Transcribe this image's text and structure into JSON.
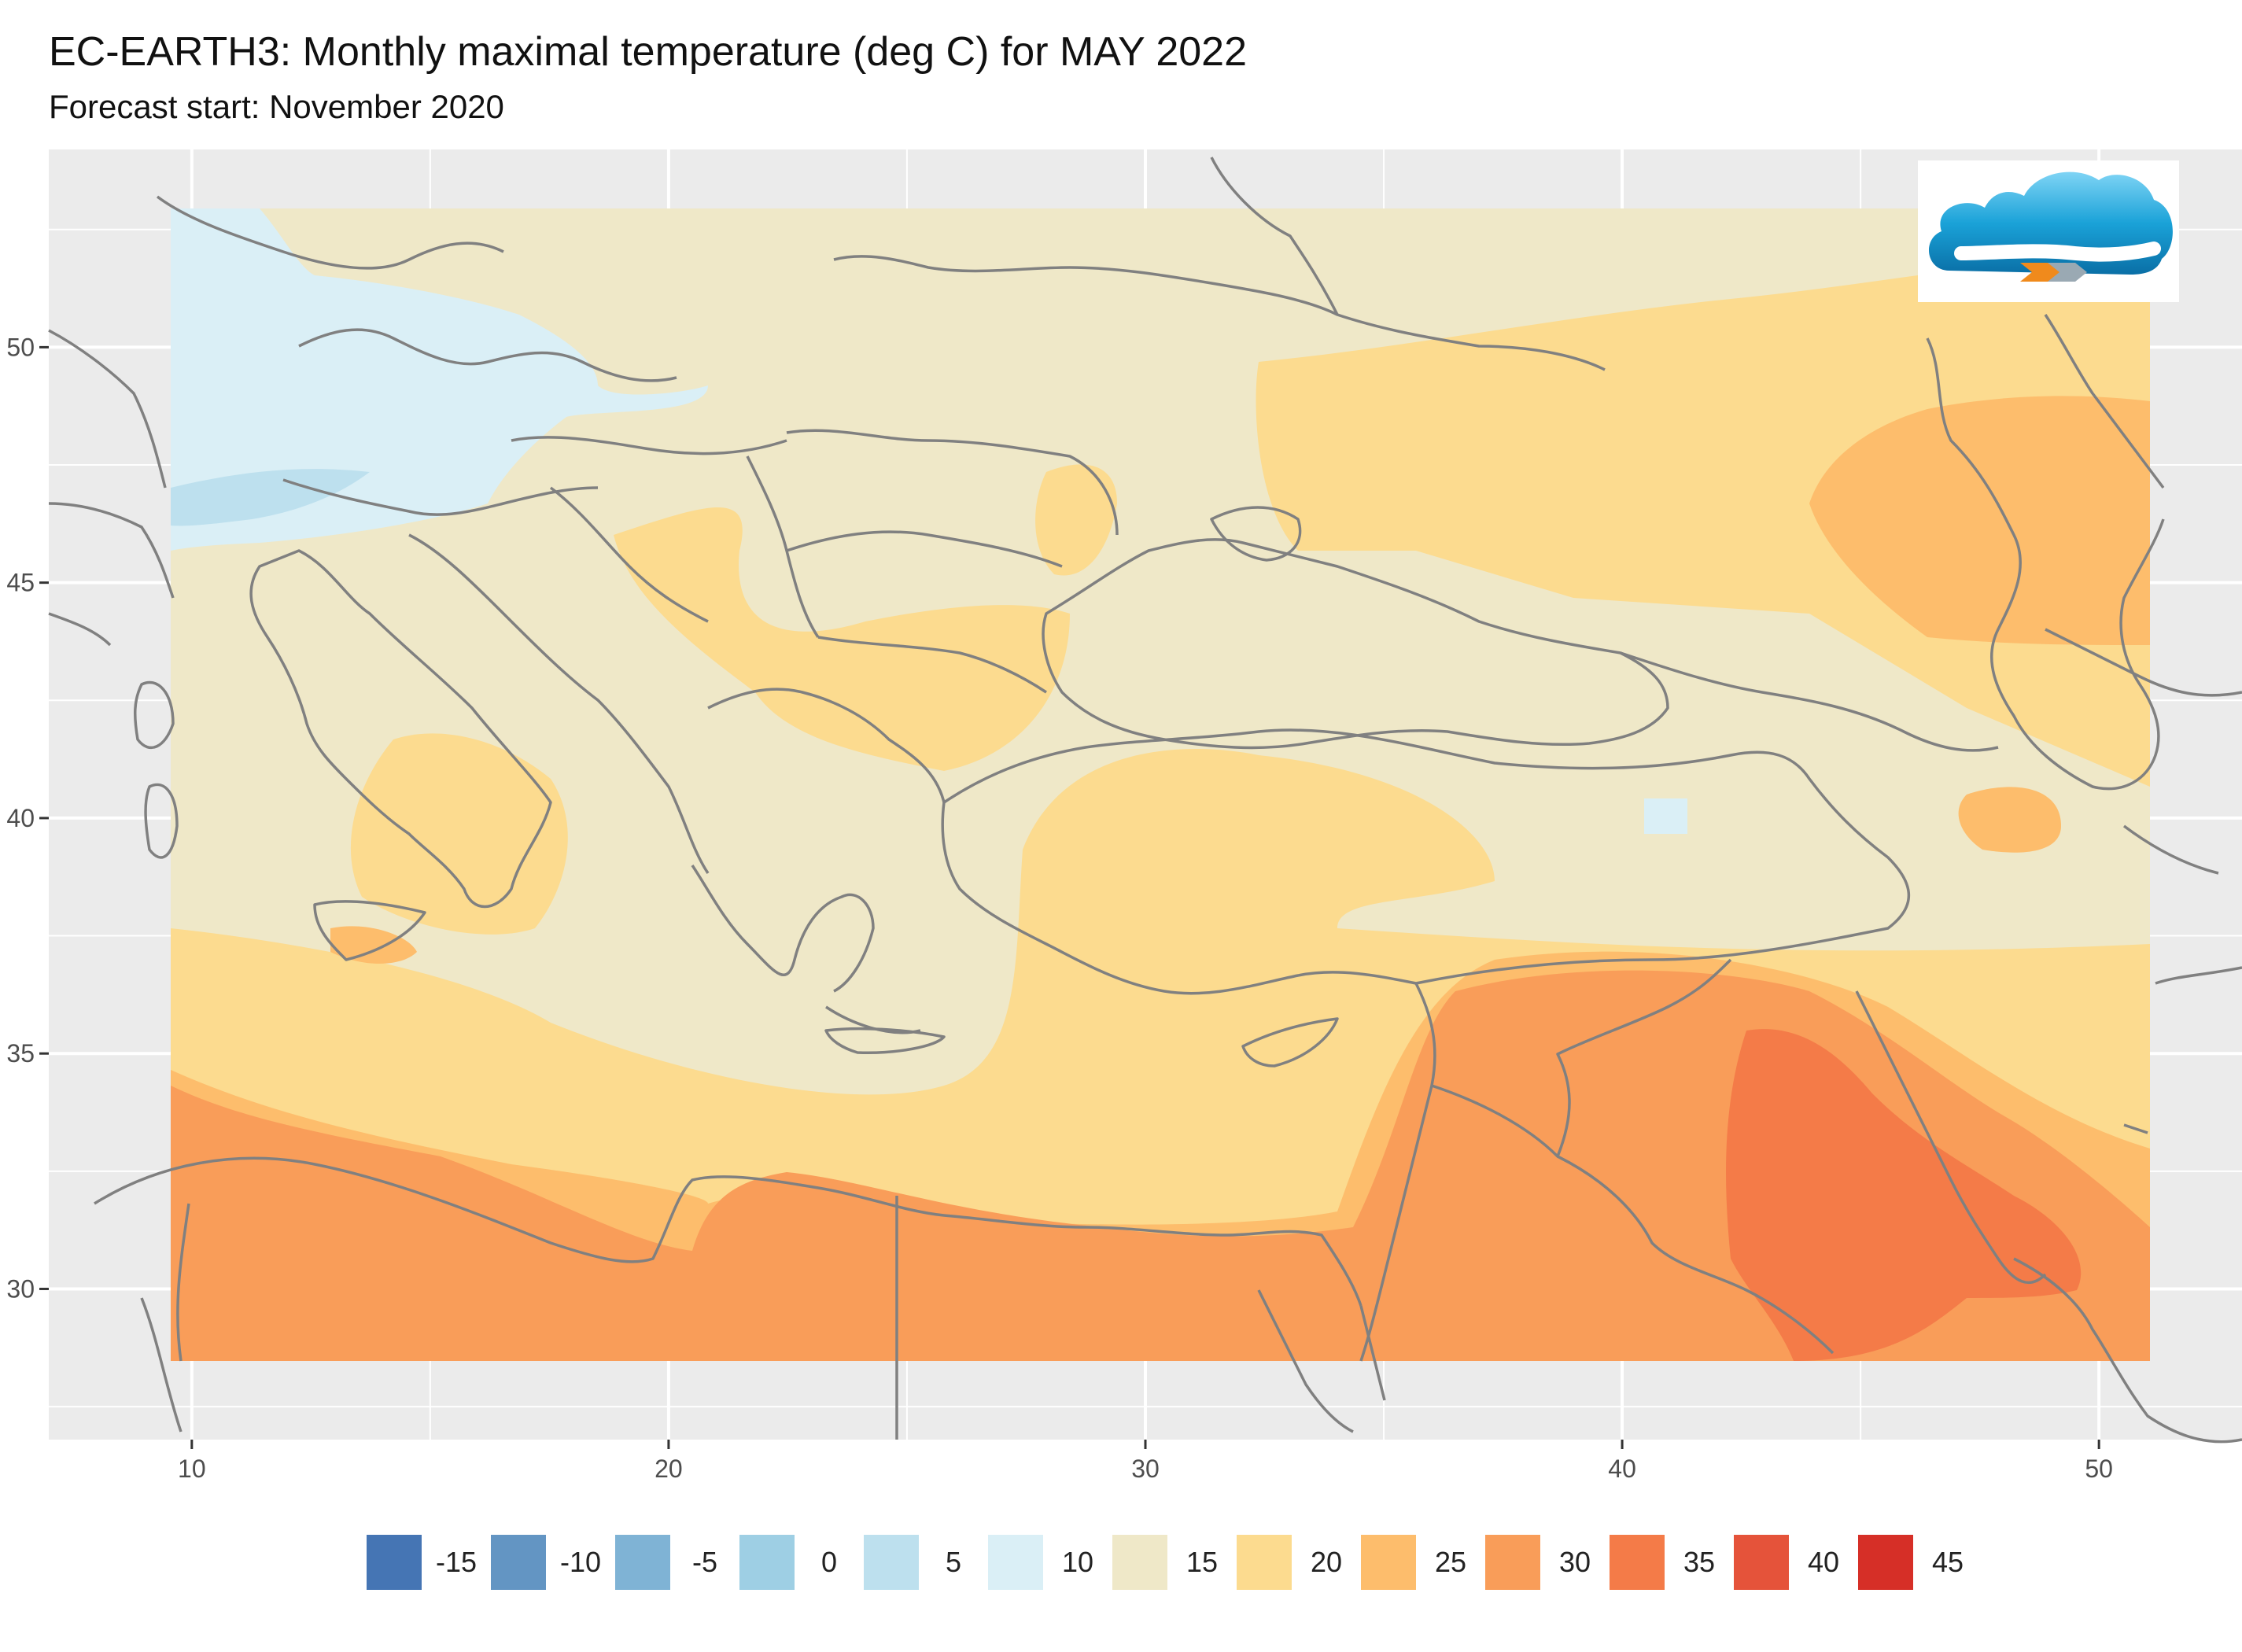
{
  "header": {
    "title": "EC-EARTH3: Monthly maximal temperature (deg C) for MAY 2022",
    "subtitle": "Forecast start: November 2020"
  },
  "axes": {
    "x_ticks": [
      "10",
      "20",
      "30",
      "40",
      "50"
    ],
    "y_ticks": [
      "50",
      "45",
      "40",
      "35",
      "30"
    ],
    "x_range": [
      7,
      53
    ],
    "y_range": [
      26.8,
      54.2
    ]
  },
  "legend": {
    "items": [
      {
        "label": "-15",
        "color": "#4575b4"
      },
      {
        "label": "-10",
        "color": "#6395c3"
      },
      {
        "label": "-5",
        "color": "#7fb3d5"
      },
      {
        "label": "0",
        "color": "#9ecfe4"
      },
      {
        "label": "5",
        "color": "#bde0ee"
      },
      {
        "label": "10",
        "color": "#daeff6"
      },
      {
        "label": "15",
        "color": "#efe8c8"
      },
      {
        "label": "20",
        "color": "#fcdb8f"
      },
      {
        "label": "25",
        "color": "#fdbd6c"
      },
      {
        "label": "30",
        "color": "#f99d59"
      },
      {
        "label": "35",
        "color": "#f47b48"
      },
      {
        "label": "40",
        "color": "#e5533a"
      },
      {
        "label": "45",
        "color": "#d62f27"
      }
    ]
  },
  "map": {
    "panel_background": "#ebebeb",
    "gridline_color": "#ffffff",
    "border_color": "#808080",
    "extent": {
      "lon": [
        9.5,
        51.5
      ],
      "lat": [
        28.5,
        53
      ]
    },
    "regions": [
      {
        "level": "15",
        "description": "background base"
      },
      {
        "level": "10",
        "description": "central Europe cool area"
      },
      {
        "level": "5",
        "description": "Alps"
      },
      {
        "level": "20",
        "description": "Turkey, Ukraine, Italy coasts"
      },
      {
        "level": "25",
        "description": "southern belt, Caspian"
      },
      {
        "level": "30",
        "description": "North Africa, Syria, Iraq"
      },
      {
        "level": "35",
        "description": "Mesopotamia"
      }
    ]
  },
  "logo": {
    "icon": "cloud-logo-icon"
  }
}
